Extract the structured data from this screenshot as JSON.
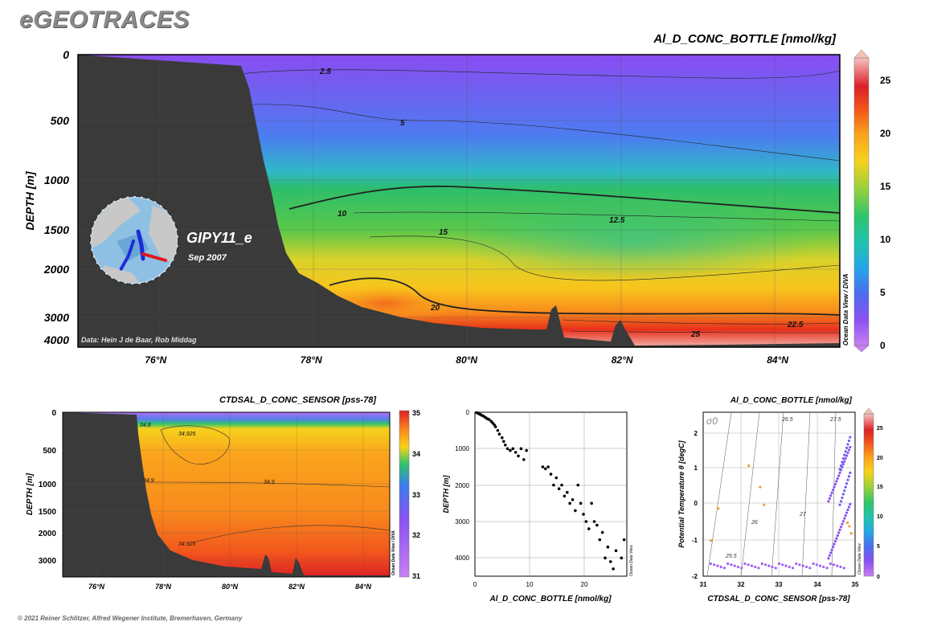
{
  "brand": "eGEOTRACES",
  "copyright": "© 2021 Reiner Schlitzer, Alfred Wegener Institute, Bremerhaven, Germany",
  "chart_data": [
    {
      "type": "heatmap",
      "title": "Al_D_CONC_BOTTLE [nmol/kg]",
      "ylabel": "DEPTH [m]",
      "xlim": [
        75,
        84.8
      ],
      "x_ticks": [
        76,
        78,
        80,
        82,
        84
      ],
      "x_tick_labels": [
        "76°N",
        "78°N",
        "80°N",
        "82°N",
        "84°N"
      ],
      "y_tick_labels": [
        "0",
        "500",
        "1000",
        "1500",
        "2000",
        "3000",
        "4000"
      ],
      "colorbar": {
        "min": 0,
        "max": 27.5,
        "ticks": [
          "0",
          "5",
          "10",
          "15",
          "20",
          "25"
        ],
        "label": "Ocean Data View / DIVA"
      },
      "contour_labels": [
        "2.5",
        "5",
        "10",
        "12.5",
        "15",
        "20",
        "22.5",
        "25"
      ],
      "cruise": "GIPY11_e",
      "date": "Sep 2007",
      "credit": "Data: Hein J de Baar, Rob Middag"
    },
    {
      "type": "heatmap",
      "title": "CTDSAL_D_CONC_SENSOR [pss-78]",
      "ylabel": "DEPTH [m]",
      "x_tick_labels": [
        "76°N",
        "78°N",
        "80°N",
        "82°N",
        "84°N"
      ],
      "y_tick_labels": [
        "0",
        "500",
        "1000",
        "1500",
        "2000",
        "3000"
      ],
      "colorbar": {
        "ticks": [
          "31",
          "32",
          "33",
          "34",
          "35"
        ],
        "label": "Ocean Data View / DIVA"
      },
      "contour_labels": [
        "34.925",
        "34.9",
        "34.9",
        "34.925",
        "34.8"
      ]
    },
    {
      "type": "scatter",
      "xlabel": "Al_D_CONC_BOTTLE [nmol/kg]",
      "ylabel": "DEPTH [m]",
      "xlim": [
        0,
        28
      ],
      "ylim": [
        0,
        4500
      ],
      "x_tick_labels": [
        "0",
        "10",
        "20"
      ],
      "y_tick_labels": [
        "0",
        "1000",
        "2000",
        "3000",
        "4000"
      ],
      "side_label": "Ocean Data View",
      "x": [
        0.3,
        0.5,
        0.7,
        1,
        1.2,
        1.5,
        1.8,
        2,
        2.3,
        2.6,
        3,
        3.3,
        3.6,
        3.8,
        4.2,
        4.5,
        5,
        5.3,
        5.6,
        6,
        6.5,
        7,
        7.5,
        8,
        8.5,
        9,
        9.5,
        12.5,
        13,
        13.5,
        14,
        14.5,
        15,
        15.5,
        16,
        16.5,
        17,
        17.5,
        18,
        18.5,
        19,
        19.5,
        20,
        20.5,
        21,
        21.5,
        22,
        22.5,
        23,
        23.5,
        24,
        24.5,
        25,
        25.5,
        26,
        27,
        27.5
      ],
      "y": [
        10,
        20,
        40,
        60,
        80,
        100,
        130,
        150,
        180,
        200,
        250,
        300,
        350,
        400,
        500,
        600,
        700,
        800,
        900,
        1000,
        1050,
        1000,
        1100,
        1200,
        1000,
        1300,
        1050,
        1500,
        1550,
        1500,
        1700,
        2000,
        1800,
        2100,
        2000,
        2300,
        2200,
        2500,
        2400,
        2700,
        2000,
        2500,
        2800,
        3000,
        3200,
        2500,
        3000,
        3100,
        3500,
        3300,
        4000,
        3700,
        4100,
        4300,
        3800,
        4000,
        3500
      ]
    },
    {
      "type": "scatter",
      "title": "Al_D_CONC_BOTTLE [nmol/kg]",
      "xlabel": "CTDSAL_D_CONC_SENSOR [pss-78]",
      "ylabel": "Potential Temperature θ [degC]",
      "xlim": [
        31,
        35
      ],
      "ylim": [
        -2,
        2.6
      ],
      "x_tick_labels": [
        "31",
        "32",
        "33",
        "34",
        "35"
      ],
      "y_tick_labels": [
        "-2",
        "-1",
        "0",
        "1",
        "2"
      ],
      "sigma_label": "σ0",
      "isopycnal_labels": [
        "25.5",
        "26",
        "26.5",
        "27",
        "27.5"
      ],
      "colorbar": {
        "ticks": [
          "0",
          "5",
          "10",
          "15",
          "20",
          "25"
        ],
        "label": "Ocean Data View"
      }
    }
  ]
}
